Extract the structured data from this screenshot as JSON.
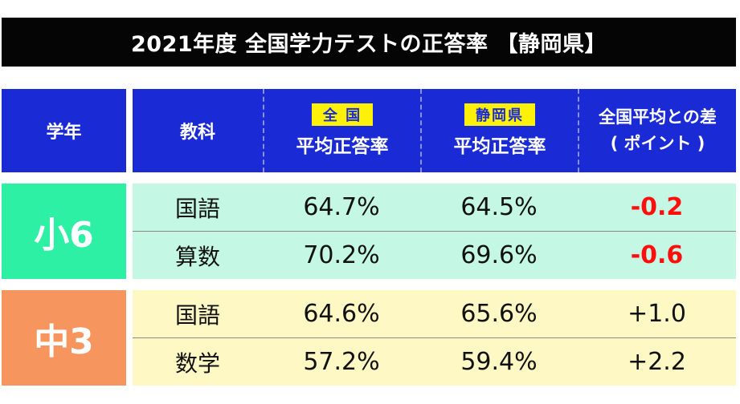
{
  "title": "2021年度 全国学力テストの正答率 【静岡県】",
  "header": {
    "grade": "学年",
    "subject": "教科",
    "national_tag": "全 国",
    "national_label": "平均正答率",
    "prefecture_tag": "静岡県",
    "prefecture_label": "平均正答率",
    "diff_label_1": "全国平均との差",
    "diff_label_2": "( ポイント )"
  },
  "groups": [
    {
      "grade": "小6",
      "rows": [
        {
          "subject": "国語",
          "national": "64.7%",
          "prefecture": "64.5%",
          "diff": "-0.2"
        },
        {
          "subject": "算数",
          "national": "70.2%",
          "prefecture": "69.6%",
          "diff": "-0.6"
        }
      ]
    },
    {
      "grade": "中3",
      "rows": [
        {
          "subject": "国語",
          "national": "64.6%",
          "prefecture": "65.6%",
          "diff": "+1.0"
        },
        {
          "subject": "数学",
          "national": "57.2%",
          "prefecture": "59.4%",
          "diff": "+2.2"
        }
      ]
    }
  ],
  "colors": {
    "title_bg": "#050505",
    "header_bg": "#1a2bd6",
    "tag_bg": "#fdf10a",
    "elementary_grade_bg": "#2ef0a4",
    "elementary_row_bg": "#c4f8e4",
    "junior_grade_bg": "#f6955e",
    "junior_row_bg": "#fdf8c4",
    "negative_text": "#ff0e0e"
  }
}
